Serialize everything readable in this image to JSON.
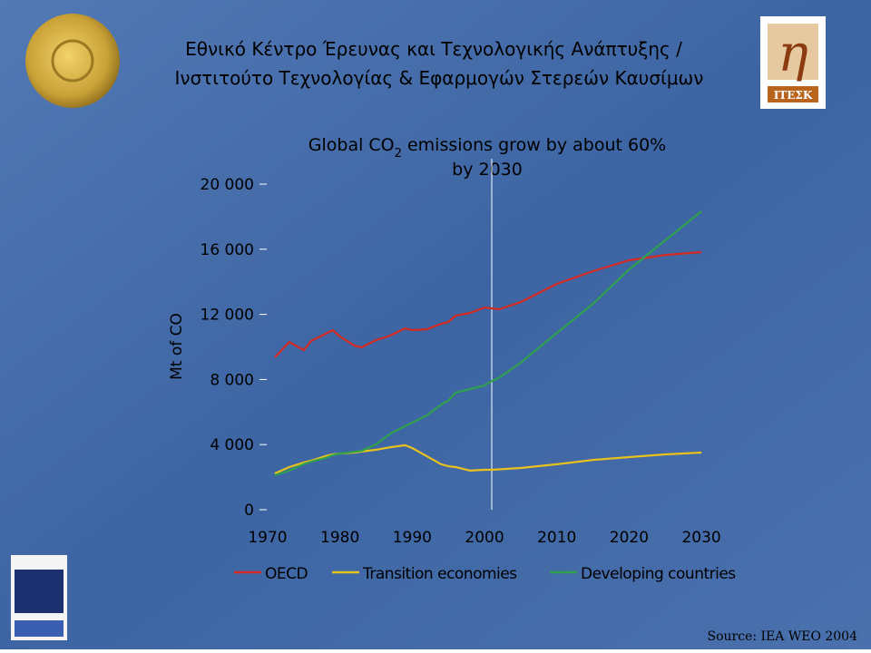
{
  "header": {
    "title_lines": [
      "Εθνικό Κέντρο Έρευνας και Τεχνολογικής Ανάπτυξης /",
      "Ινστιτούτο Τεχνολογίας & Εφαρμογών Στερεών Καυσίμων"
    ],
    "logo_text": "ITEΣK"
  },
  "chart_data": {
    "type": "line",
    "title_parts": [
      "Global CO",
      "2",
      " emissions grow by about 60%"
    ],
    "title_line2": "by 2030",
    "y_label": "Mt of CO",
    "x": [
      1971,
      1973,
      1975,
      1976,
      1978,
      1979,
      1980,
      1982,
      1983,
      1985,
      1987,
      1989,
      1990,
      1992,
      1994,
      1995,
      1996,
      1998,
      2000,
      2001,
      2002,
      2005,
      2010,
      2015,
      2020,
      2025,
      2030
    ],
    "series": [
      {
        "name": "OECD",
        "color": "#d42a22",
        "values": [
          9360,
          10300,
          9800,
          10360,
          10800,
          11030,
          10640,
          10080,
          9970,
          10420,
          10700,
          11140,
          11030,
          11080,
          11420,
          11530,
          11920,
          12090,
          12420,
          12370,
          12310,
          12750,
          13870,
          14650,
          15320,
          15650,
          15820
        ]
      },
      {
        "name": "Transition economies",
        "color": "#e8c21c",
        "values": [
          2230,
          2620,
          2900,
          3010,
          3290,
          3400,
          3450,
          3510,
          3570,
          3680,
          3840,
          3960,
          3790,
          3290,
          2790,
          2670,
          2620,
          2400,
          2450,
          2450,
          2480,
          2560,
          2790,
          3060,
          3230,
          3400,
          3510
        ]
      },
      {
        "name": "Developing countries",
        "color": "#2ea04e",
        "values": [
          2120,
          2400,
          2800,
          2950,
          3180,
          3350,
          3450,
          3560,
          3620,
          4010,
          4680,
          5130,
          5350,
          5790,
          6460,
          6700,
          7190,
          7410,
          7630,
          7900,
          8100,
          9030,
          10860,
          12650,
          14760,
          16550,
          18330
        ]
      }
    ],
    "xlim": [
      1969,
      2034
    ],
    "xticks": [
      1970,
      1980,
      1990,
      2000,
      2010,
      2020,
      2030
    ],
    "ylim": [
      0,
      20000
    ],
    "yticks": [
      0,
      {
        "value": 4000,
        "label": "4 000"
      },
      {
        "value": 8000,
        "label": "8 000"
      },
      {
        "value": 12000,
        "label": "12 000"
      },
      {
        "value": 16000,
        "label": "16 000"
      },
      {
        "value": 20000,
        "label": "20 000"
      }
    ],
    "vline_x": 2001,
    "source": "Source: IEA WEO 2004"
  }
}
